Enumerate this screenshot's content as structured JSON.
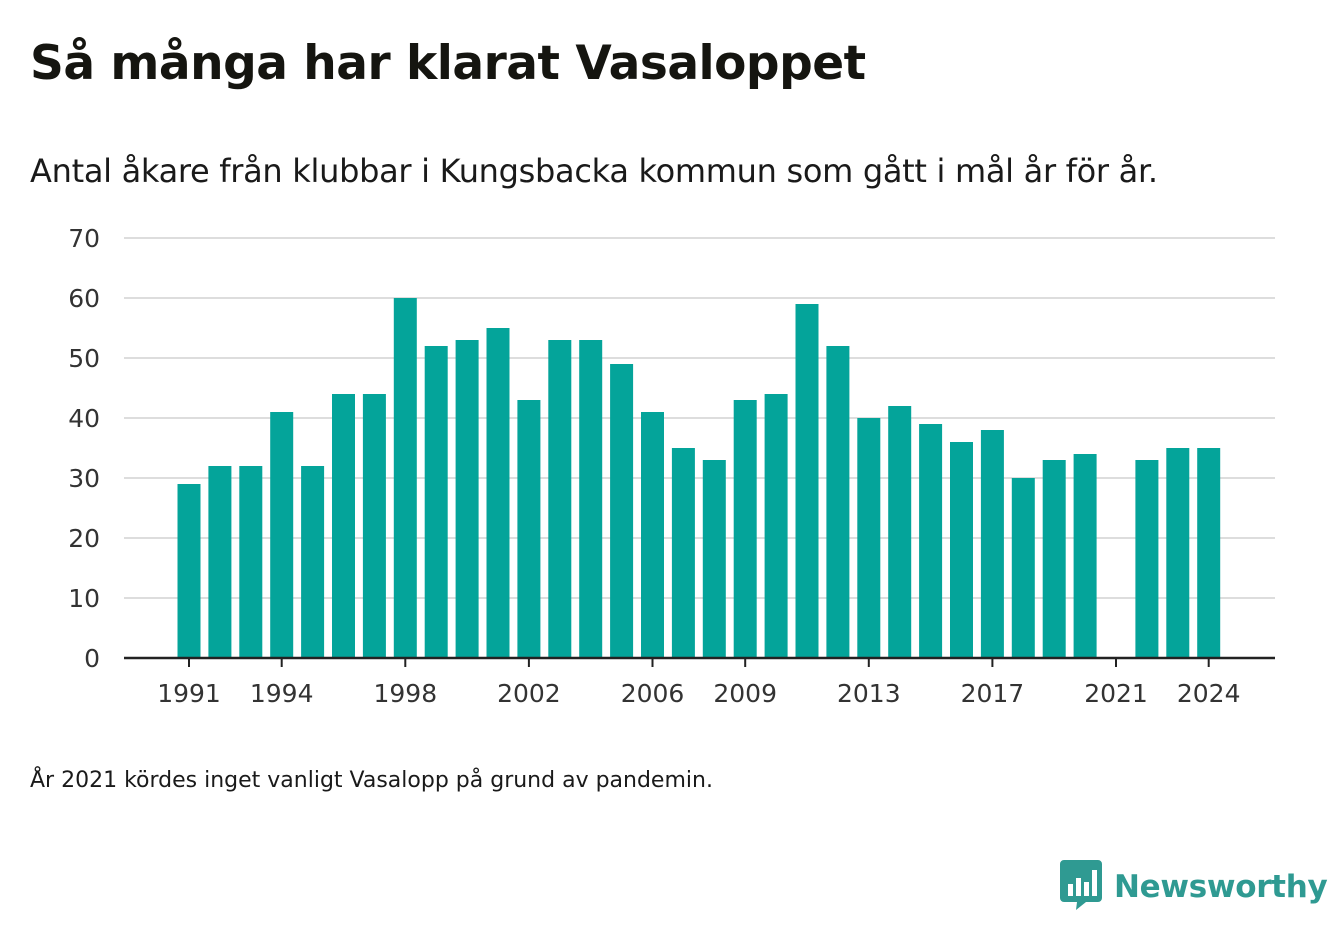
{
  "title": "Så många har klarat Vasaloppet",
  "subtitle": "Antal åkare från klubbar i Kungsbacka kommun som gått i mål år för år.",
  "footnote": "År 2021 kördes inget vanligt Vasalopp på grund av pandemin.",
  "brand": {
    "name": "Newsworthy",
    "icon": "newsworthy-logo-icon",
    "color": "#2f9a92"
  },
  "colors": {
    "bar": "#04a49a",
    "grid": "#dddddd",
    "axis": "#222222",
    "text": "#333333"
  },
  "chart_data": {
    "type": "bar",
    "categories": [
      1991,
      1992,
      1993,
      1994,
      1995,
      1996,
      1997,
      1998,
      1999,
      2000,
      2001,
      2002,
      2003,
      2004,
      2005,
      2006,
      2007,
      2008,
      2009,
      2010,
      2011,
      2012,
      2013,
      2014,
      2015,
      2016,
      2017,
      2018,
      2019,
      2020,
      2021,
      2022,
      2023,
      2024
    ],
    "values": [
      29,
      32,
      32,
      41,
      32,
      44,
      44,
      60,
      52,
      53,
      55,
      43,
      53,
      53,
      49,
      41,
      35,
      33,
      43,
      44,
      59,
      52,
      40,
      42,
      39,
      36,
      38,
      30,
      33,
      34,
      null,
      33,
      35,
      35
    ],
    "x_tick_labels": [
      "1991",
      "1994",
      "1998",
      "2002",
      "2006",
      "2009",
      "2013",
      "2017",
      "2021",
      "2024"
    ],
    "y_ticks": [
      0,
      10,
      20,
      30,
      40,
      50,
      60,
      70
    ],
    "ylim": [
      0,
      70
    ],
    "grid": true,
    "xlabel": "",
    "ylabel": ""
  }
}
